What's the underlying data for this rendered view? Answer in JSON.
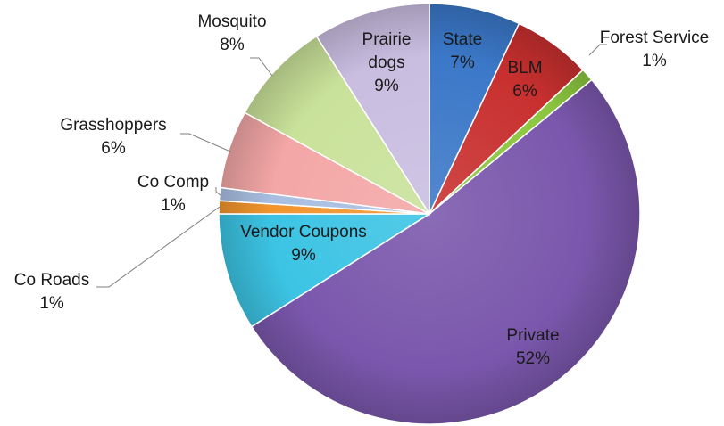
{
  "chart_data": {
    "type": "pie",
    "title": "",
    "slices": [
      {
        "name": "State",
        "label_lines": [
          "State",
          "7%"
        ],
        "value": 7,
        "color": "#3b78c8"
      },
      {
        "name": "BLM",
        "label_lines": [
          "BLM",
          "6%"
        ],
        "value": 6,
        "color": "#c8302f"
      },
      {
        "name": "Forest Service",
        "label_lines": [
          "Forest Service",
          "1%"
        ],
        "value": 1,
        "color": "#8cc63f"
      },
      {
        "name": "Private",
        "label_lines": [
          "Private",
          "52%"
        ],
        "value": 52,
        "color": "#7a57ac"
      },
      {
        "name": "Vendor Coupons",
        "label_lines": [
          "Vendor Coupons",
          "9%"
        ],
        "value": 9,
        "color": "#3cc4e4"
      },
      {
        "name": "Co Roads",
        "label_lines": [
          "Co Roads",
          "1%"
        ],
        "value": 1,
        "color": "#f2952f"
      },
      {
        "name": "Co Comp",
        "label_lines": [
          "Co Comp",
          "1%"
        ],
        "value": 1,
        "color": "#a9bfe2"
      },
      {
        "name": "Grasshoppers",
        "label_lines": [
          "Grasshoppers",
          "6%"
        ],
        "value": 6,
        "color": "#f3a7a6"
      },
      {
        "name": "Mosquito",
        "label_lines": [
          "Mosquito",
          "8%"
        ],
        "value": 8,
        "color": "#c9e29a"
      },
      {
        "name": "Prairie dogs",
        "label_lines": [
          "Prairie",
          "dogs",
          "9%"
        ],
        "value": 9,
        "color": "#c9bde0"
      }
    ],
    "start_angle_deg": 0,
    "direction": "clockwise",
    "legend": "none",
    "data_labels": "category and percent"
  }
}
